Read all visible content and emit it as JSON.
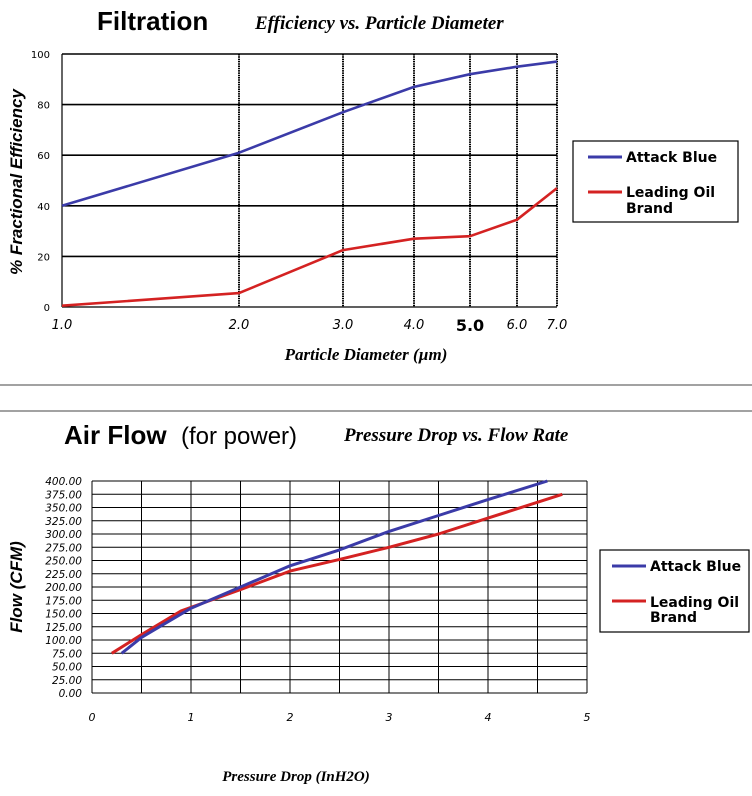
{
  "chart_data": [
    {
      "type": "line",
      "title": "Filtration",
      "subtitle": "Efficiency vs. Particle Diameter",
      "xlabel": "Particle Diameter (µm)",
      "ylabel": "% Fractional Efficiency",
      "x_ticks": [
        "1.0",
        "2.0",
        "3.0",
        "4.0",
        "5.0",
        "6.0",
        "7.0"
      ],
      "y_ticks": [
        "0",
        "20",
        "40",
        "60",
        "80",
        "100"
      ],
      "ylim": [
        0,
        100
      ],
      "grid": true,
      "legend": "right",
      "series": [
        {
          "name": "Attack Blue",
          "color": "#3b3ba8",
          "x": [
            1.0,
            2.0,
            3.0,
            4.0,
            5.0,
            6.0,
            7.0
          ],
          "y": [
            40,
            61,
            77,
            87,
            92,
            95,
            97
          ]
        },
        {
          "name": "Leading Oil Brand",
          "color": "#d42222",
          "x": [
            1.0,
            2.0,
            3.0,
            4.0,
            5.0,
            6.0,
            7.0
          ],
          "y": [
            0.5,
            5.5,
            22.5,
            27,
            28,
            34.5,
            47
          ]
        }
      ]
    },
    {
      "type": "line",
      "title": "Air Flow",
      "title_suffix": "(for power)",
      "subtitle": "Pressure Drop vs. Flow Rate",
      "xlabel": "Pressure Drop (InH2O)",
      "ylabel": "Flow (CFM)",
      "x_ticks": [
        "0",
        "1",
        "2",
        "3",
        "4",
        "5"
      ],
      "y_ticks": [
        "0.00",
        "25.00",
        "50.00",
        "75.00",
        "100.00",
        "125.00",
        "150.00",
        "175.00",
        "200.00",
        "225.00",
        "250.00",
        "275.00",
        "300.00",
        "325.00",
        "350.00",
        "375.00",
        "400.00"
      ],
      "xlim": [
        0,
        5
      ],
      "ylim": [
        0,
        400
      ],
      "grid": true,
      "legend": "right",
      "series": [
        {
          "name": "Attack Blue",
          "color": "#3b3ba8",
          "x": [
            0.3,
            0.5,
            1.0,
            1.5,
            2.0,
            2.5,
            3.0,
            3.5,
            4.0,
            4.6
          ],
          "y": [
            75,
            105,
            160,
            200,
            240,
            270,
            305,
            335,
            365,
            400
          ]
        },
        {
          "name": "Leading Oil Brand",
          "color": "#d42222",
          "x": [
            0.2,
            0.5,
            0.9,
            1.5,
            2.0,
            2.5,
            3.0,
            3.5,
            4.0,
            4.75
          ],
          "y": [
            75,
            110,
            155,
            195,
            230,
            252,
            275,
            300,
            330,
            375
          ]
        }
      ]
    }
  ]
}
